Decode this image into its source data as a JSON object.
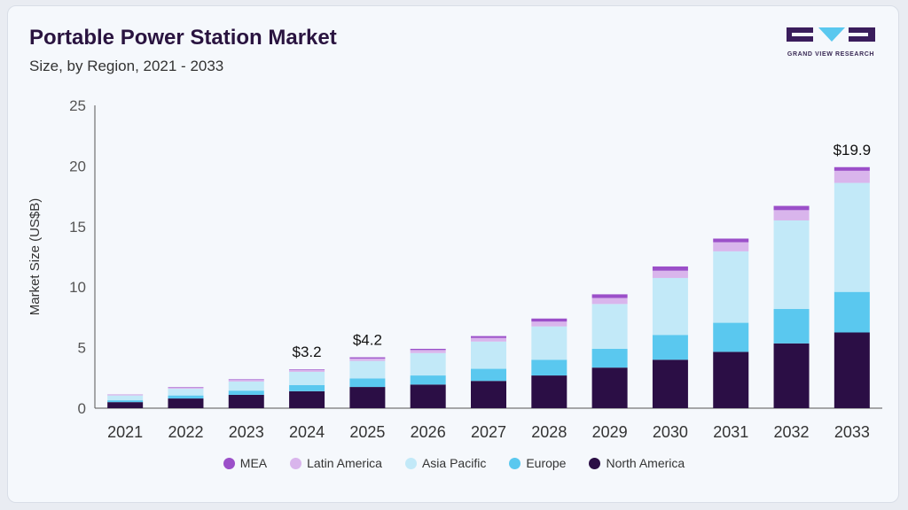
{
  "header": {
    "title": "Portable Power Station Market",
    "subtitle": "Size, by Region, 2021 - 2033",
    "logo_text": "GRAND VIEW RESEARCH"
  },
  "chart_data": {
    "type": "bar",
    "stacked": true,
    "title": "Portable Power Station Market",
    "subtitle": "Size, by Region, 2021 - 2033",
    "xlabel": "",
    "ylabel": "Market Size (US$B)",
    "ylim": [
      0,
      25
    ],
    "yticks": [
      0,
      5,
      10,
      15,
      20,
      25
    ],
    "grid": false,
    "legend_position": "bottom",
    "categories": [
      "2021",
      "2022",
      "2023",
      "2024",
      "2025",
      "2026",
      "2027",
      "2028",
      "2029",
      "2030",
      "2031",
      "2032",
      "2033"
    ],
    "series": [
      {
        "name": "North America",
        "color": "#2b0e45",
        "values": [
          0.5,
          0.8,
          1.1,
          1.4,
          1.75,
          1.95,
          2.25,
          2.7,
          3.35,
          4.0,
          4.65,
          5.35,
          6.25
        ]
      },
      {
        "name": "Europe",
        "color": "#5ac8ef",
        "values": [
          0.15,
          0.25,
          0.35,
          0.5,
          0.7,
          0.75,
          1.0,
          1.3,
          1.55,
          2.05,
          2.4,
          2.85,
          3.35
        ]
      },
      {
        "name": "Asia Pacific",
        "color": "#c2e9f8",
        "values": [
          0.4,
          0.55,
          0.75,
          1.1,
          1.45,
          1.85,
          2.25,
          2.75,
          3.7,
          4.7,
          5.9,
          7.3,
          9.0
        ]
      },
      {
        "name": "Latin America",
        "color": "#d9b5ec",
        "values": [
          0.05,
          0.1,
          0.13,
          0.15,
          0.2,
          0.25,
          0.3,
          0.4,
          0.5,
          0.6,
          0.75,
          0.85,
          1.0
        ]
      },
      {
        "name": "MEA",
        "color": "#9b4fc9",
        "values": [
          0.02,
          0.04,
          0.05,
          0.05,
          0.1,
          0.1,
          0.15,
          0.25,
          0.3,
          0.35,
          0.3,
          0.35,
          0.3
        ]
      }
    ],
    "annotations": [
      {
        "category": "2024",
        "label": "$3.2"
      },
      {
        "category": "2025",
        "label": "$4.2"
      },
      {
        "category": "2033",
        "label": "$19.9"
      }
    ]
  }
}
